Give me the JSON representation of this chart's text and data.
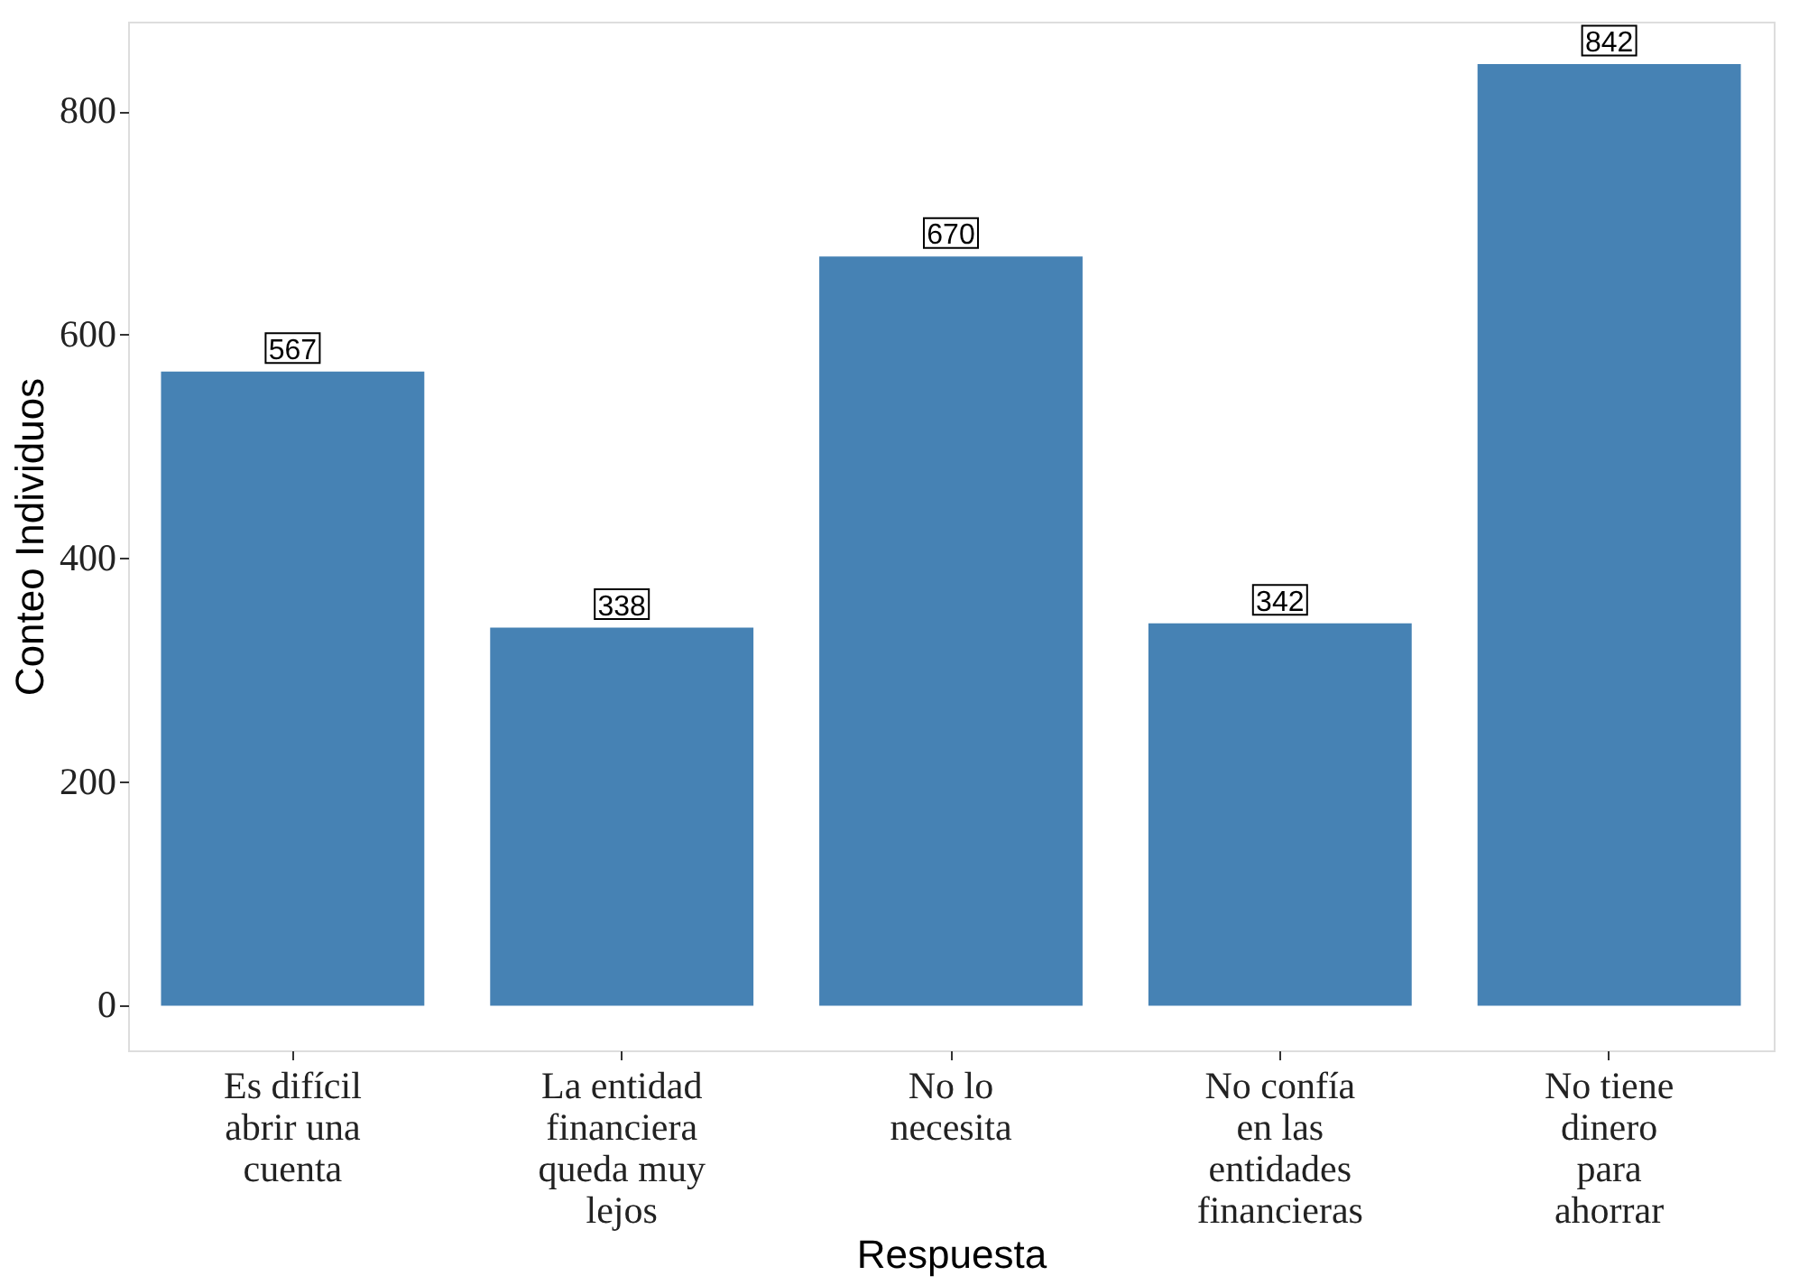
{
  "chart_data": {
    "type": "bar",
    "xlabel": "Respuesta",
    "ylabel": "Conteo Individuos",
    "categories": [
      "Es difícil abrir una cuenta",
      "La entidad financiera queda muy lejos",
      "No lo necesita",
      "No confía en las entidades financieras",
      "No tiene dinero para ahorrar"
    ],
    "values": [
      567,
      338,
      670,
      342,
      842
    ],
    "color": "#4682b4",
    "ylim": [
      -40,
      880
    ],
    "yticks": [
      0,
      200,
      400,
      600,
      800
    ],
    "grid": false,
    "data_labels": true
  }
}
